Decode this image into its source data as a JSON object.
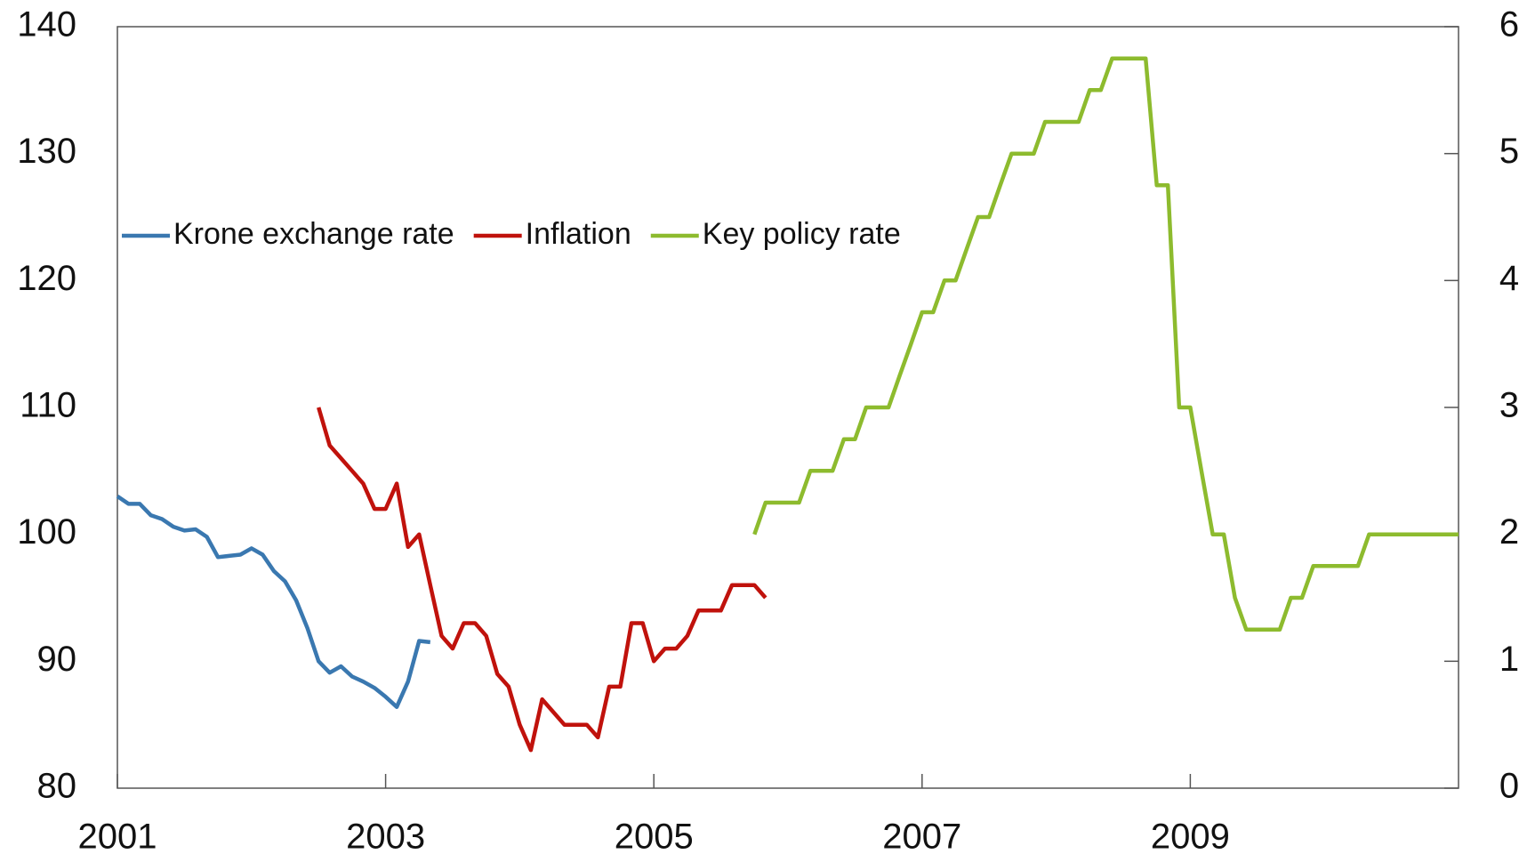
{
  "chart_data": {
    "type": "line",
    "xlim": [
      2001,
      2011
    ],
    "xticks": [
      2001,
      2003,
      2005,
      2007,
      2009
    ],
    "ylim": [
      80,
      140
    ],
    "yticks": [
      80,
      90,
      100,
      110,
      120,
      130,
      140
    ],
    "y2lim": [
      0,
      6
    ],
    "y2ticks": [
      0,
      1,
      2,
      3,
      4,
      5,
      6
    ],
    "series": [
      {
        "name": "Krone exchange rate",
        "color": "#3a78b0",
        "x": [
          2001,
          2001.083,
          2001.167,
          2001.25,
          2001.333,
          2001.417,
          2001.5,
          2001.583,
          2001.667,
          2001.75,
          2001.833,
          2001.917,
          2002,
          2002.083,
          2002.167,
          2002.25,
          2002.333,
          2002.417,
          2002.5,
          2002.583,
          2002.667,
          2002.75,
          2002.833,
          2002.917,
          2003,
          2003.083,
          2003.167,
          2003.25,
          2003.333
        ],
        "values": [
          103,
          102.4,
          102.4,
          101.5,
          101.2,
          100.6,
          100.3,
          100.4,
          99.8,
          98.2,
          98.3,
          98.4,
          98.9,
          98.4,
          97.1,
          96.3,
          94.8,
          92.6,
          90.0,
          89.1,
          89.6,
          88.8,
          88.4,
          87.9,
          87.2,
          86.4,
          88.4,
          91.6,
          91.5
        ]
      },
      {
        "name": "Inflation",
        "color": "#c0120c",
        "axis": "y2",
        "x": [
          2002.5,
          2002.583,
          2002.667,
          2002.75,
          2002.833,
          2002.917,
          2003,
          2003.083,
          2003.167,
          2003.25,
          2003.333,
          2003.417,
          2003.5,
          2003.583,
          2003.667,
          2003.75,
          2003.833,
          2003.917,
          2004,
          2004.083,
          2004.167,
          2004.25,
          2004.333,
          2004.417,
          2004.5,
          2004.583,
          2004.667,
          2004.75,
          2004.833,
          2004.917,
          2005,
          2005.083,
          2005.167,
          2005.25,
          2005.333,
          2005.417,
          2005.5,
          2005.583,
          2005.667,
          2005.75,
          2005.833
        ],
        "values": [
          3.0,
          2.7,
          2.6,
          2.5,
          2.4,
          2.2,
          2.2,
          2.4,
          1.9,
          2.0,
          1.6,
          1.2,
          1.1,
          1.3,
          1.3,
          1.2,
          0.9,
          0.8,
          0.5,
          0.3,
          0.7,
          0.6,
          0.5,
          0.5,
          0.5,
          0.4,
          0.8,
          0.8,
          1.3,
          1.3,
          1.0,
          1.1,
          1.1,
          1.2,
          1.4,
          1.4,
          1.4,
          1.6,
          1.6,
          1.6,
          1.5
        ]
      },
      {
        "name": "Key policy rate",
        "color": "#8dbb2e",
        "axis": "y2",
        "x": [
          2005.75,
          2005.833,
          2005.917,
          2006,
          2006.083,
          2006.167,
          2006.25,
          2006.333,
          2006.417,
          2006.5,
          2006.583,
          2006.667,
          2006.75,
          2006.833,
          2006.917,
          2007,
          2007.083,
          2007.167,
          2007.25,
          2007.333,
          2007.417,
          2007.5,
          2007.583,
          2007.667,
          2007.75,
          2007.833,
          2007.917,
          2008,
          2008.083,
          2008.167,
          2008.25,
          2008.333,
          2008.417,
          2008.5,
          2008.583,
          2008.667,
          2008.75,
          2008.833,
          2008.917,
          2009,
          2009.083,
          2009.167,
          2009.25,
          2009.333,
          2009.417,
          2009.5,
          2009.583,
          2009.667,
          2009.75,
          2009.833,
          2009.917,
          2010,
          2010.083,
          2010.167,
          2010.25,
          2010.333,
          2010.417,
          2010.5,
          2010.583,
          2010.667,
          2010.75,
          2010.833,
          2010.917,
          2011
        ],
        "values": [
          2.0,
          2.25,
          2.25,
          2.25,
          2.25,
          2.5,
          2.5,
          2.5,
          2.75,
          2.75,
          3.0,
          3.0,
          3.0,
          3.25,
          3.5,
          3.75,
          3.75,
          4.0,
          4.0,
          4.25,
          4.5,
          4.5,
          4.75,
          5.0,
          5.0,
          5.0,
          5.25,
          5.25,
          5.25,
          5.25,
          5.5,
          5.5,
          5.75,
          5.75,
          5.75,
          5.75,
          4.75,
          4.75,
          3.0,
          3.0,
          2.5,
          2.0,
          2.0,
          1.5,
          1.25,
          1.25,
          1.25,
          1.25,
          1.5,
          1.5,
          1.75,
          1.75,
          1.75,
          1.75,
          1.75,
          2.0,
          2.0,
          2.0,
          2.0,
          2.0,
          2.0,
          2.0,
          2.0,
          2.0
        ]
      }
    ]
  }
}
